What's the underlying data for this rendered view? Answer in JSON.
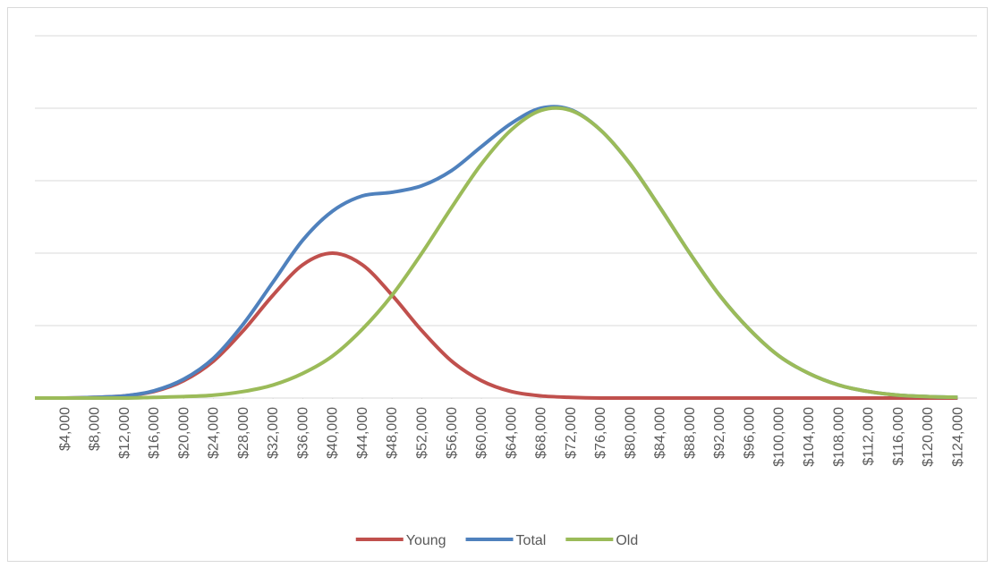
{
  "chart_data": {
    "type": "line",
    "x": [
      0,
      4000,
      8000,
      12000,
      16000,
      20000,
      24000,
      28000,
      32000,
      36000,
      40000,
      44000,
      48000,
      52000,
      56000,
      60000,
      64000,
      68000,
      72000,
      76000,
      80000,
      84000,
      88000,
      92000,
      96000,
      100000,
      104000,
      108000,
      112000,
      116000,
      120000,
      124000
    ],
    "series": [
      {
        "name": "Young",
        "color": "#c0504d",
        "values": [
          0,
          0,
          0.01,
          0.03,
          0.09,
          0.24,
          0.51,
          0.93,
          1.42,
          1.84,
          2.0,
          1.84,
          1.42,
          0.93,
          0.51,
          0.24,
          0.09,
          0.03,
          0.01,
          0,
          0,
          0,
          0,
          0,
          0,
          0,
          0,
          0,
          0,
          0,
          0,
          0
        ]
      },
      {
        "name": "Total",
        "color": "#4f81bd",
        "values": [
          0,
          0,
          0.01,
          0.03,
          0.1,
          0.26,
          0.55,
          1.02,
          1.6,
          2.18,
          2.58,
          2.79,
          2.84,
          2.93,
          3.14,
          3.47,
          3.79,
          4.0,
          3.98,
          3.7,
          3.23,
          2.63,
          2.0,
          1.42,
          0.95,
          0.58,
          0.34,
          0.18,
          0.09,
          0.04,
          0.02,
          0.01
        ]
      },
      {
        "name": "Old",
        "color": "#9bbb59",
        "values": [
          0,
          0,
          0,
          0,
          0.01,
          0.02,
          0.04,
          0.09,
          0.18,
          0.34,
          0.58,
          0.95,
          1.42,
          2.0,
          2.63,
          3.23,
          3.7,
          3.97,
          3.97,
          3.7,
          3.23,
          2.63,
          2.0,
          1.42,
          0.95,
          0.58,
          0.34,
          0.18,
          0.09,
          0.04,
          0.02,
          0.01
        ]
      }
    ],
    "xlim": [
      0,
      126000
    ],
    "xticks": [
      {
        "value": 4000,
        "label": "$4,000"
      },
      {
        "value": 8000,
        "label": "$8,000"
      },
      {
        "value": 12000,
        "label": "$12,000"
      },
      {
        "value": 16000,
        "label": "$16,000"
      },
      {
        "value": 20000,
        "label": "$20,000"
      },
      {
        "value": 24000,
        "label": "$24,000"
      },
      {
        "value": 28000,
        "label": "$28,000"
      },
      {
        "value": 32000,
        "label": "$32,000"
      },
      {
        "value": 36000,
        "label": "$36,000"
      },
      {
        "value": 40000,
        "label": "$40,000"
      },
      {
        "value": 44000,
        "label": "$44,000"
      },
      {
        "value": 48000,
        "label": "$48,000"
      },
      {
        "value": 52000,
        "label": "$52,000"
      },
      {
        "value": 56000,
        "label": "$56,000"
      },
      {
        "value": 60000,
        "label": "$60,000"
      },
      {
        "value": 64000,
        "label": "$64,000"
      },
      {
        "value": 68000,
        "label": "$68,000"
      },
      {
        "value": 72000,
        "label": "$72,000"
      },
      {
        "value": 76000,
        "label": "$76,000"
      },
      {
        "value": 80000,
        "label": "$80,000"
      },
      {
        "value": 84000,
        "label": "$84,000"
      },
      {
        "value": 88000,
        "label": "$88,000"
      },
      {
        "value": 92000,
        "label": "$92,000"
      },
      {
        "value": 96000,
        "label": "$96,000"
      },
      {
        "value": 100000,
        "label": "$100,000"
      },
      {
        "value": 104000,
        "label": "$104,000"
      },
      {
        "value": 108000,
        "label": "$108,000"
      },
      {
        "value": 112000,
        "label": "$112,000"
      },
      {
        "value": 116000,
        "label": "$116,000"
      },
      {
        "value": 120000,
        "label": "$120,000"
      },
      {
        "value": 124000,
        "label": "$124,000"
      }
    ],
    "ylim": [
      0,
      5
    ],
    "yticks": [
      0,
      1,
      2,
      3,
      4,
      5
    ],
    "show_ytick_labels": false,
    "grid": true,
    "legend": "bottom"
  }
}
